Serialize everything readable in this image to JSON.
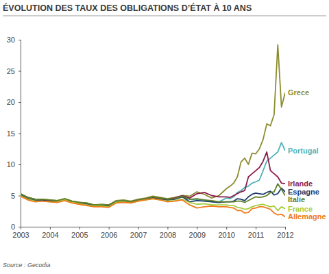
{
  "chart_data": {
    "type": "line",
    "title": "ÉVOLUTION DES TAUX DES OBLIGATIONS D’ÉTAT À 10 ANS",
    "source": "Source : Gecodia",
    "x": [
      2003,
      2003.25,
      2003.5,
      2003.75,
      2004,
      2004.25,
      2004.5,
      2004.75,
      2005,
      2005.25,
      2005.5,
      2005.75,
      2006,
      2006.25,
      2006.5,
      2006.75,
      2007,
      2007.25,
      2007.5,
      2007.75,
      2008,
      2008.25,
      2008.5,
      2008.75,
      2009,
      2009.25,
      2009.5,
      2009.75,
      2010,
      2010.125,
      2010.25,
      2010.375,
      2010.5,
      2010.625,
      2010.75,
      2010.875,
      2011,
      2011.125,
      2011.25,
      2011.375,
      2011.5,
      2011.625,
      2011.75,
      2011.875,
      2012
    ],
    "xlim": [
      2003,
      2012
    ],
    "xticks": [
      2003,
      2004,
      2005,
      2006,
      2007,
      2008,
      2009,
      2010,
      2011,
      2012
    ],
    "ylim": [
      0,
      30
    ],
    "yticks": [
      0,
      5,
      10,
      15,
      20,
      25,
      30
    ],
    "grid": false,
    "series": [
      {
        "name": "Grece",
        "color": "#8c8c2f",
        "values": [
          5.3,
          4.7,
          4.4,
          4.4,
          4.3,
          4.2,
          4.5,
          4.1,
          3.9,
          3.8,
          3.5,
          3.6,
          3.5,
          4.2,
          4.3,
          4.1,
          4.4,
          4.6,
          4.9,
          4.7,
          4.5,
          4.7,
          5.0,
          4.9,
          5.6,
          5.2,
          4.6,
          5.0,
          6.1,
          6.5,
          7.0,
          8.0,
          10.4,
          11.0,
          10.0,
          11.8,
          11.7,
          12.5,
          14.0,
          16.5,
          16.2,
          18.0,
          29.2,
          19.2,
          21.5
        ]
      },
      {
        "name": "Portugal",
        "color": "#4fb3b8",
        "values": [
          5.2,
          4.6,
          4.3,
          4.3,
          4.2,
          4.1,
          4.4,
          4.0,
          3.8,
          3.7,
          3.4,
          3.5,
          3.4,
          4.1,
          4.2,
          4.0,
          4.3,
          4.5,
          4.7,
          4.5,
          4.3,
          4.5,
          4.8,
          4.4,
          4.3,
          4.3,
          4.0,
          4.0,
          4.6,
          4.5,
          4.8,
          5.5,
          5.8,
          6.3,
          6.5,
          7.0,
          7.2,
          7.5,
          9.0,
          10.5,
          11.0,
          11.5,
          12.0,
          13.5,
          12.2
        ]
      },
      {
        "name": "Irlande",
        "color": "#8b1c4c",
        "values": [
          5.1,
          4.5,
          4.2,
          4.3,
          4.2,
          4.1,
          4.4,
          4.0,
          3.8,
          3.6,
          3.4,
          3.4,
          3.4,
          4.0,
          4.1,
          4.0,
          4.3,
          4.5,
          4.7,
          4.5,
          4.4,
          4.6,
          5.0,
          4.6,
          5.3,
          5.5,
          5.0,
          4.8,
          4.8,
          4.7,
          5.0,
          5.3,
          5.6,
          5.8,
          8.0,
          8.5,
          9.0,
          9.5,
          10.5,
          12.0,
          9.0,
          8.5,
          8.0,
          7.0,
          6.9
        ]
      },
      {
        "name": "Espagne",
        "color": "#1c3c6c",
        "values": [
          5.1,
          4.5,
          4.2,
          4.2,
          4.1,
          4.1,
          4.3,
          3.9,
          3.7,
          3.6,
          3.3,
          3.4,
          3.3,
          4.0,
          4.1,
          3.9,
          4.2,
          4.4,
          4.6,
          4.4,
          4.3,
          4.4,
          4.8,
          4.0,
          4.2,
          4.1,
          4.0,
          3.9,
          4.0,
          4.0,
          4.1,
          4.5,
          4.4,
          4.2,
          4.8,
          5.2,
          5.4,
          5.3,
          5.2,
          5.5,
          5.7,
          5.1,
          5.3,
          6.2,
          5.6
        ]
      },
      {
        "name": "Italie",
        "color": "#5f7f26",
        "values": [
          5.3,
          4.7,
          4.4,
          4.4,
          4.3,
          4.2,
          4.5,
          4.1,
          3.9,
          3.8,
          3.5,
          3.5,
          3.5,
          4.1,
          4.2,
          4.0,
          4.3,
          4.5,
          4.8,
          4.6,
          4.4,
          4.5,
          4.9,
          4.4,
          4.5,
          4.3,
          4.2,
          4.0,
          4.0,
          4.0,
          4.0,
          4.1,
          4.1,
          3.9,
          4.2,
          4.5,
          4.8,
          4.7,
          4.8,
          5.0,
          5.5,
          5.6,
          6.9,
          6.0,
          5.0
        ]
      },
      {
        "name": "France",
        "color": "#a6cc3c",
        "values": [
          5.0,
          4.4,
          4.1,
          4.1,
          4.0,
          4.0,
          4.3,
          3.9,
          3.7,
          3.5,
          3.3,
          3.3,
          3.2,
          3.9,
          4.0,
          3.8,
          4.1,
          4.3,
          4.5,
          4.3,
          4.1,
          4.2,
          4.4,
          3.9,
          3.6,
          3.7,
          3.5,
          3.5,
          3.5,
          3.4,
          3.4,
          3.1,
          3.0,
          2.8,
          2.9,
          3.2,
          3.4,
          3.5,
          3.6,
          3.4,
          3.2,
          3.3,
          2.6,
          3.2,
          2.9
        ]
      },
      {
        "name": "Allemagne",
        "color": "#ef7b1c",
        "values": [
          4.9,
          4.3,
          4.0,
          4.1,
          4.0,
          3.9,
          4.2,
          3.8,
          3.6,
          3.4,
          3.2,
          3.2,
          3.1,
          3.8,
          3.9,
          3.8,
          4.1,
          4.3,
          4.5,
          4.3,
          4.0,
          4.1,
          4.3,
          3.5,
          3.0,
          3.2,
          3.3,
          3.2,
          3.2,
          3.1,
          3.0,
          2.6,
          2.6,
          2.2,
          2.3,
          2.9,
          3.0,
          3.2,
          3.2,
          3.0,
          2.8,
          2.2,
          1.9,
          2.0,
          1.6
        ]
      }
    ]
  }
}
